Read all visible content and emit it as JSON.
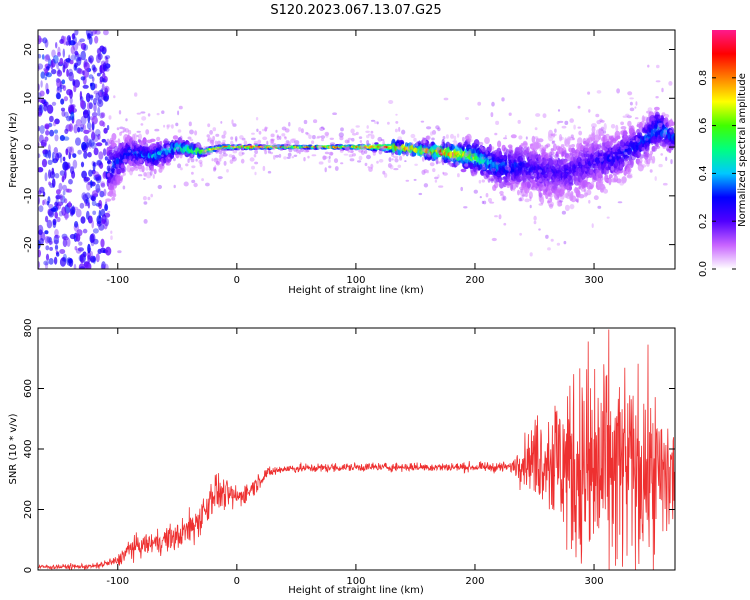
{
  "figure_title": "S120.2023.067.13.07.G25",
  "chart_data": [
    {
      "type": "heatmap",
      "title": "",
      "xlabel": "Height of straight line (km)",
      "ylabel": "Frequency (Hz)",
      "xlim": [
        -167,
        368
      ],
      "ylim": [
        -25,
        24
      ],
      "x_ticks": [
        -100,
        0,
        100,
        200,
        300
      ],
      "y_ticks": [
        -20,
        -10,
        0,
        10,
        20
      ],
      "grid": false,
      "colorbar": {
        "label": "Normalized spectral amplitude",
        "range": [
          0.0,
          1.0
        ],
        "ticks": [
          0.0,
          0.2,
          0.4,
          0.6,
          0.8
        ],
        "colormap": [
          "#ffffff",
          "#c864ff",
          "#5000ff",
          "#0000ff",
          "#00c8ff",
          "#00ff80",
          "#40ff00",
          "#ffff00",
          "#ff8000",
          "#ff0000",
          "#ff1a8c"
        ]
      },
      "ridge": {
        "x": [
          -110,
          -90,
          -70,
          -50,
          -30,
          -10,
          10,
          50,
          100,
          130,
          150,
          170,
          185,
          200,
          220,
          240,
          260,
          280,
          300,
          320,
          340,
          355,
          365
        ],
        "freq": [
          -5,
          -1,
          -2,
          0,
          -1,
          0,
          0,
          0,
          0,
          0,
          -0.5,
          -1,
          -1.5,
          -2,
          -4,
          -4,
          -5,
          -5,
          -3,
          -2,
          1,
          4,
          2
        ],
        "amplitude": [
          0.35,
          0.35,
          0.4,
          0.55,
          0.7,
          0.85,
          0.95,
          0.95,
          0.95,
          0.9,
          0.85,
          0.85,
          0.85,
          0.6,
          0.4,
          0.3,
          0.25,
          0.25,
          0.25,
          0.3,
          0.35,
          0.45,
          0.35
        ],
        "spread_hz": [
          6,
          3,
          3,
          1.5,
          1,
          0.5,
          0.4,
          0.3,
          0.4,
          1,
          1.2,
          1.5,
          2,
          3,
          4,
          5,
          6,
          6,
          6,
          5,
          4,
          4,
          3
        ]
      },
      "noise_region": {
        "x": [
          -167,
          -108
        ],
        "freq": [
          -25,
          24
        ],
        "amplitude": [
          0.15,
          0.3
        ]
      }
    },
    {
      "type": "line",
      "title": "",
      "xlabel": "Height of straight line (km)",
      "ylabel": "SNR (10 * v/v)",
      "xlim": [
        -167,
        368
      ],
      "ylim": [
        0,
        800
      ],
      "x_ticks": [
        -100,
        0,
        100,
        200,
        300
      ],
      "y_ticks": [
        0,
        200,
        400,
        600,
        800
      ],
      "grid": false,
      "color": "#ee3030",
      "series": [
        {
          "x": [
            -167,
            -120,
            -100,
            -90,
            -70,
            -50,
            -35,
            -25,
            -20,
            -10,
            0,
            10,
            20,
            25,
            40,
            100,
            150,
            200,
            230,
            240,
            260,
            280,
            300,
            320,
            340,
            360,
            368
          ],
          "mean": [
            10,
            12,
            30,
            70,
            90,
            110,
            150,
            210,
            260,
            250,
            240,
            260,
            300,
            320,
            335,
            340,
            340,
            340,
            340,
            360,
            380,
            340,
            320,
            330,
            330,
            300,
            310
          ],
          "amplitude": [
            6,
            8,
            15,
            30,
            30,
            40,
            50,
            60,
            60,
            40,
            30,
            30,
            20,
            15,
            12,
            12,
            12,
            12,
            15,
            60,
            150,
            250,
            350,
            300,
            250,
            200,
            180
          ]
        }
      ]
    }
  ]
}
